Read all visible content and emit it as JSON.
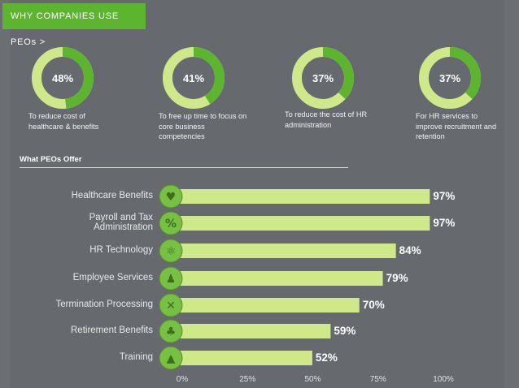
{
  "banner": {
    "label": "WHY COMPANIES USE PEOs >"
  },
  "stats": [
    {
      "value": 48,
      "label": "48%",
      "caption": "To reduce cost of healthcare & benefits"
    },
    {
      "value": 41,
      "label": "41%",
      "caption": "To free up time to focus on core business competencies"
    },
    {
      "value": 37,
      "label": "37%",
      "caption": "To reduce the cost of HR administration"
    },
    {
      "value": 37,
      "label": "37%",
      "caption": "For HR services to improve recruitment and retention"
    }
  ],
  "chart_data": {
    "type": "bar",
    "orientation": "horizontal",
    "title": "What PEOs Offer",
    "categories": [
      "Healthcare Benefits",
      "Payroll and Tax Administration",
      "HR Technology",
      "Employee Services",
      "Termination Processing",
      "Retirement Benefits",
      "Training"
    ],
    "values": [
      97,
      97,
      84,
      79,
      70,
      59,
      52
    ],
    "value_labels": [
      "97%",
      "97%",
      "84%",
      "79%",
      "70%",
      "59%",
      "52%"
    ],
    "icons": [
      "heart-icon",
      "percent-icon",
      "atom-icon",
      "person-icon",
      "x-icon",
      "palm-tree-icon",
      "graduation-cap-icon"
    ],
    "xlim": [
      0,
      100
    ],
    "xticks": [
      "0%",
      "25%",
      "50%",
      "75%",
      "100%"
    ],
    "colors": {
      "bar": "#cfe98a",
      "icon_bg": "#76c043",
      "donut_fill": "#5db42e",
      "donut_track": "#cfe98a"
    }
  }
}
